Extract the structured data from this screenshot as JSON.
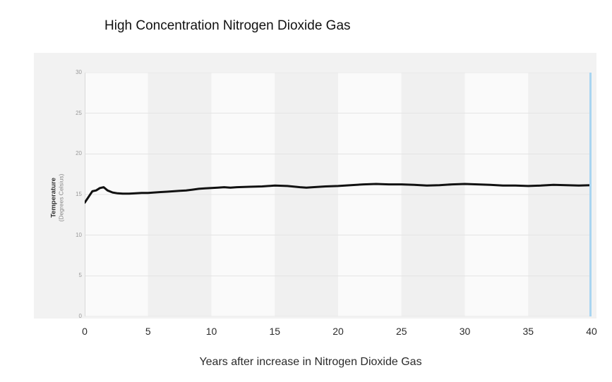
{
  "page": {
    "title": "High Concentration Nitrogen Dioxide Gas"
  },
  "chart_data": {
    "type": "line",
    "title": "High Concentration Nitrogen Dioxide Gas",
    "xlabel": "Years after increase in Nitrogen Dioxide Gas",
    "ylabel": "Temperature",
    "ylabel_sub": "(Degrees Celsius)",
    "xlim": [
      0,
      40
    ],
    "ylim": [
      0,
      30
    ],
    "x_ticks": [
      0,
      5,
      10,
      15,
      20,
      25,
      30,
      35,
      40
    ],
    "y_ticks": [
      0,
      5,
      10,
      15,
      20,
      25,
      30
    ],
    "grid": "horizontal",
    "legend": "none",
    "band_shading": "alternating vertical 5-year bands",
    "cursor_x": 40,
    "colors": {
      "line": "#111111",
      "cursor": "#a9d5f1",
      "band_light": "#fafafa",
      "band_dark": "#f0f0f0",
      "card_bg": "#f2f2f2",
      "gridline": "#e4e4e4",
      "axis_line": "#d9d9d9"
    },
    "series": [
      {
        "name": "Temperature",
        "x": [
          0,
          0.3,
          0.6,
          0.9,
          1.2,
          1.5,
          1.8,
          2.2,
          2.6,
          3,
          3.5,
          4,
          4.5,
          5,
          5.5,
          6,
          6.5,
          7,
          7.5,
          8,
          8.5,
          9,
          9.5,
          10,
          10.5,
          11,
          11.5,
          12,
          13,
          14,
          15,
          16,
          17,
          17.5,
          18,
          19,
          20,
          21,
          22,
          23,
          24,
          25,
          26,
          27,
          28,
          29,
          30,
          31,
          32,
          33,
          34,
          35,
          36,
          37,
          38,
          39,
          40
        ],
        "y": [
          14.0,
          14.7,
          15.4,
          15.5,
          15.8,
          15.9,
          15.5,
          15.25,
          15.15,
          15.1,
          15.1,
          15.15,
          15.2,
          15.2,
          15.25,
          15.3,
          15.35,
          15.4,
          15.45,
          15.5,
          15.6,
          15.7,
          15.75,
          15.8,
          15.85,
          15.9,
          15.85,
          15.9,
          15.95,
          16.0,
          16.1,
          16.05,
          15.9,
          15.85,
          15.9,
          16.0,
          16.05,
          16.15,
          16.25,
          16.3,
          16.25,
          16.25,
          16.2,
          16.1,
          16.15,
          16.25,
          16.3,
          16.25,
          16.2,
          16.1,
          16.1,
          16.05,
          16.1,
          16.2,
          16.15,
          16.1,
          16.15
        ]
      }
    ]
  }
}
